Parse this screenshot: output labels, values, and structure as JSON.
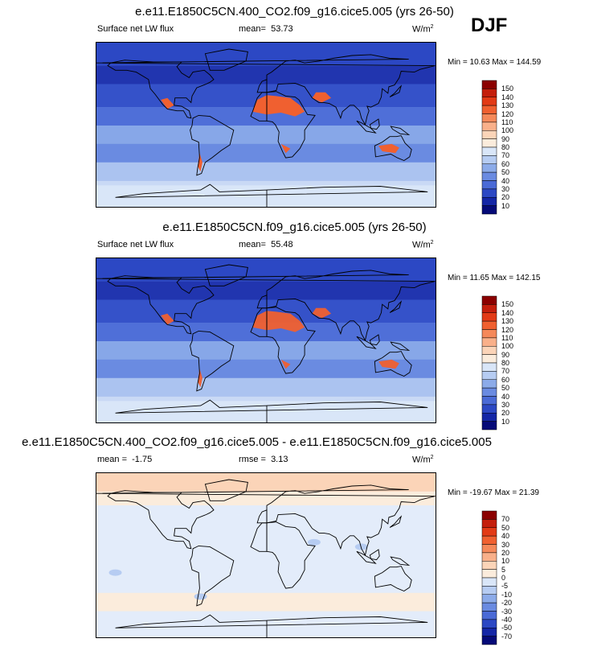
{
  "season": "DJF",
  "chart_data": [
    {
      "type": "heatmap",
      "title": "e.e11.E1850C5CN.400_CO2.f09_g16.cice5.005 (yrs 26-50)",
      "variable": "Surface net LW flux",
      "mean_label": "mean=",
      "mean": "53.73",
      "units": "W/m",
      "units_exp": "2",
      "minmax": "Min = 10.63 Max = 144.59",
      "min": 10.63,
      "max": 144.59,
      "levels": [
        "150",
        "140",
        "130",
        "120",
        "110",
        "100",
        "90",
        "80",
        "70",
        "60",
        "50",
        "40",
        "30",
        "20",
        "10"
      ],
      "colors": [
        "#8b0000",
        "#c41e0c",
        "#e23a16",
        "#f06030",
        "#f5895a",
        "#f9b08a",
        "#fbd4b8",
        "#fbecdc",
        "#d9e6f8",
        "#b6ccf2",
        "#8cabe9",
        "#6a8be1",
        "#4a6ad6",
        "#2c48c4",
        "#1426a6",
        "#050a78"
      ],
      "base_level": 4,
      "hot_intensity": 1.0
    },
    {
      "type": "heatmap",
      "title": "e.e11.E1850C5CN.f09_g16.cice5.005 (yrs 26-50)",
      "variable": "Surface net LW flux",
      "mean_label": "mean=",
      "mean": "55.48",
      "units": "W/m",
      "units_exp": "2",
      "minmax": "Min = 11.65 Max = 142.15",
      "min": 11.65,
      "max": 142.15,
      "levels": [
        "150",
        "140",
        "130",
        "120",
        "110",
        "100",
        "90",
        "80",
        "70",
        "60",
        "50",
        "40",
        "30",
        "20",
        "10"
      ],
      "colors": [
        "#8b0000",
        "#c41e0c",
        "#e23a16",
        "#f06030",
        "#f5895a",
        "#f9b08a",
        "#fbd4b8",
        "#fbecdc",
        "#d9e6f8",
        "#b6ccf2",
        "#8cabe9",
        "#6a8be1",
        "#4a6ad6",
        "#2c48c4",
        "#1426a6",
        "#050a78"
      ],
      "base_level": 3,
      "hot_intensity": 0.95
    },
    {
      "type": "heatmap",
      "title": "e.e11.E1850C5CN.400_CO2.f09_g16.cice5.005 - e.e11.E1850C5CN.f09_g16.cice5.005",
      "variable": "",
      "mean_label": "mean =",
      "mean": "-1.75",
      "rmse_label": "rmse =",
      "rmse": "3.13",
      "units": "W/m",
      "units_exp": "2",
      "minmax": "Min = -19.67 Max = 21.39",
      "min": -19.67,
      "max": 21.39,
      "levels": [
        "70",
        "50",
        "40",
        "30",
        "20",
        "10",
        "5",
        "0",
        "-5",
        "-10",
        "-20",
        "-30",
        "-40",
        "-50",
        "-70"
      ],
      "colors": [
        "#8b0000",
        "#c41e0c",
        "#e23a16",
        "#f06030",
        "#f5895a",
        "#f9b08a",
        "#fbd4b8",
        "#fbecdc",
        "#d9e6f8",
        "#b6ccf2",
        "#8cabe9",
        "#6a8be1",
        "#4a6ad6",
        "#2c48c4",
        "#1426a6",
        "#050a78"
      ],
      "base_level": 8,
      "hot_intensity": 0.15
    }
  ]
}
